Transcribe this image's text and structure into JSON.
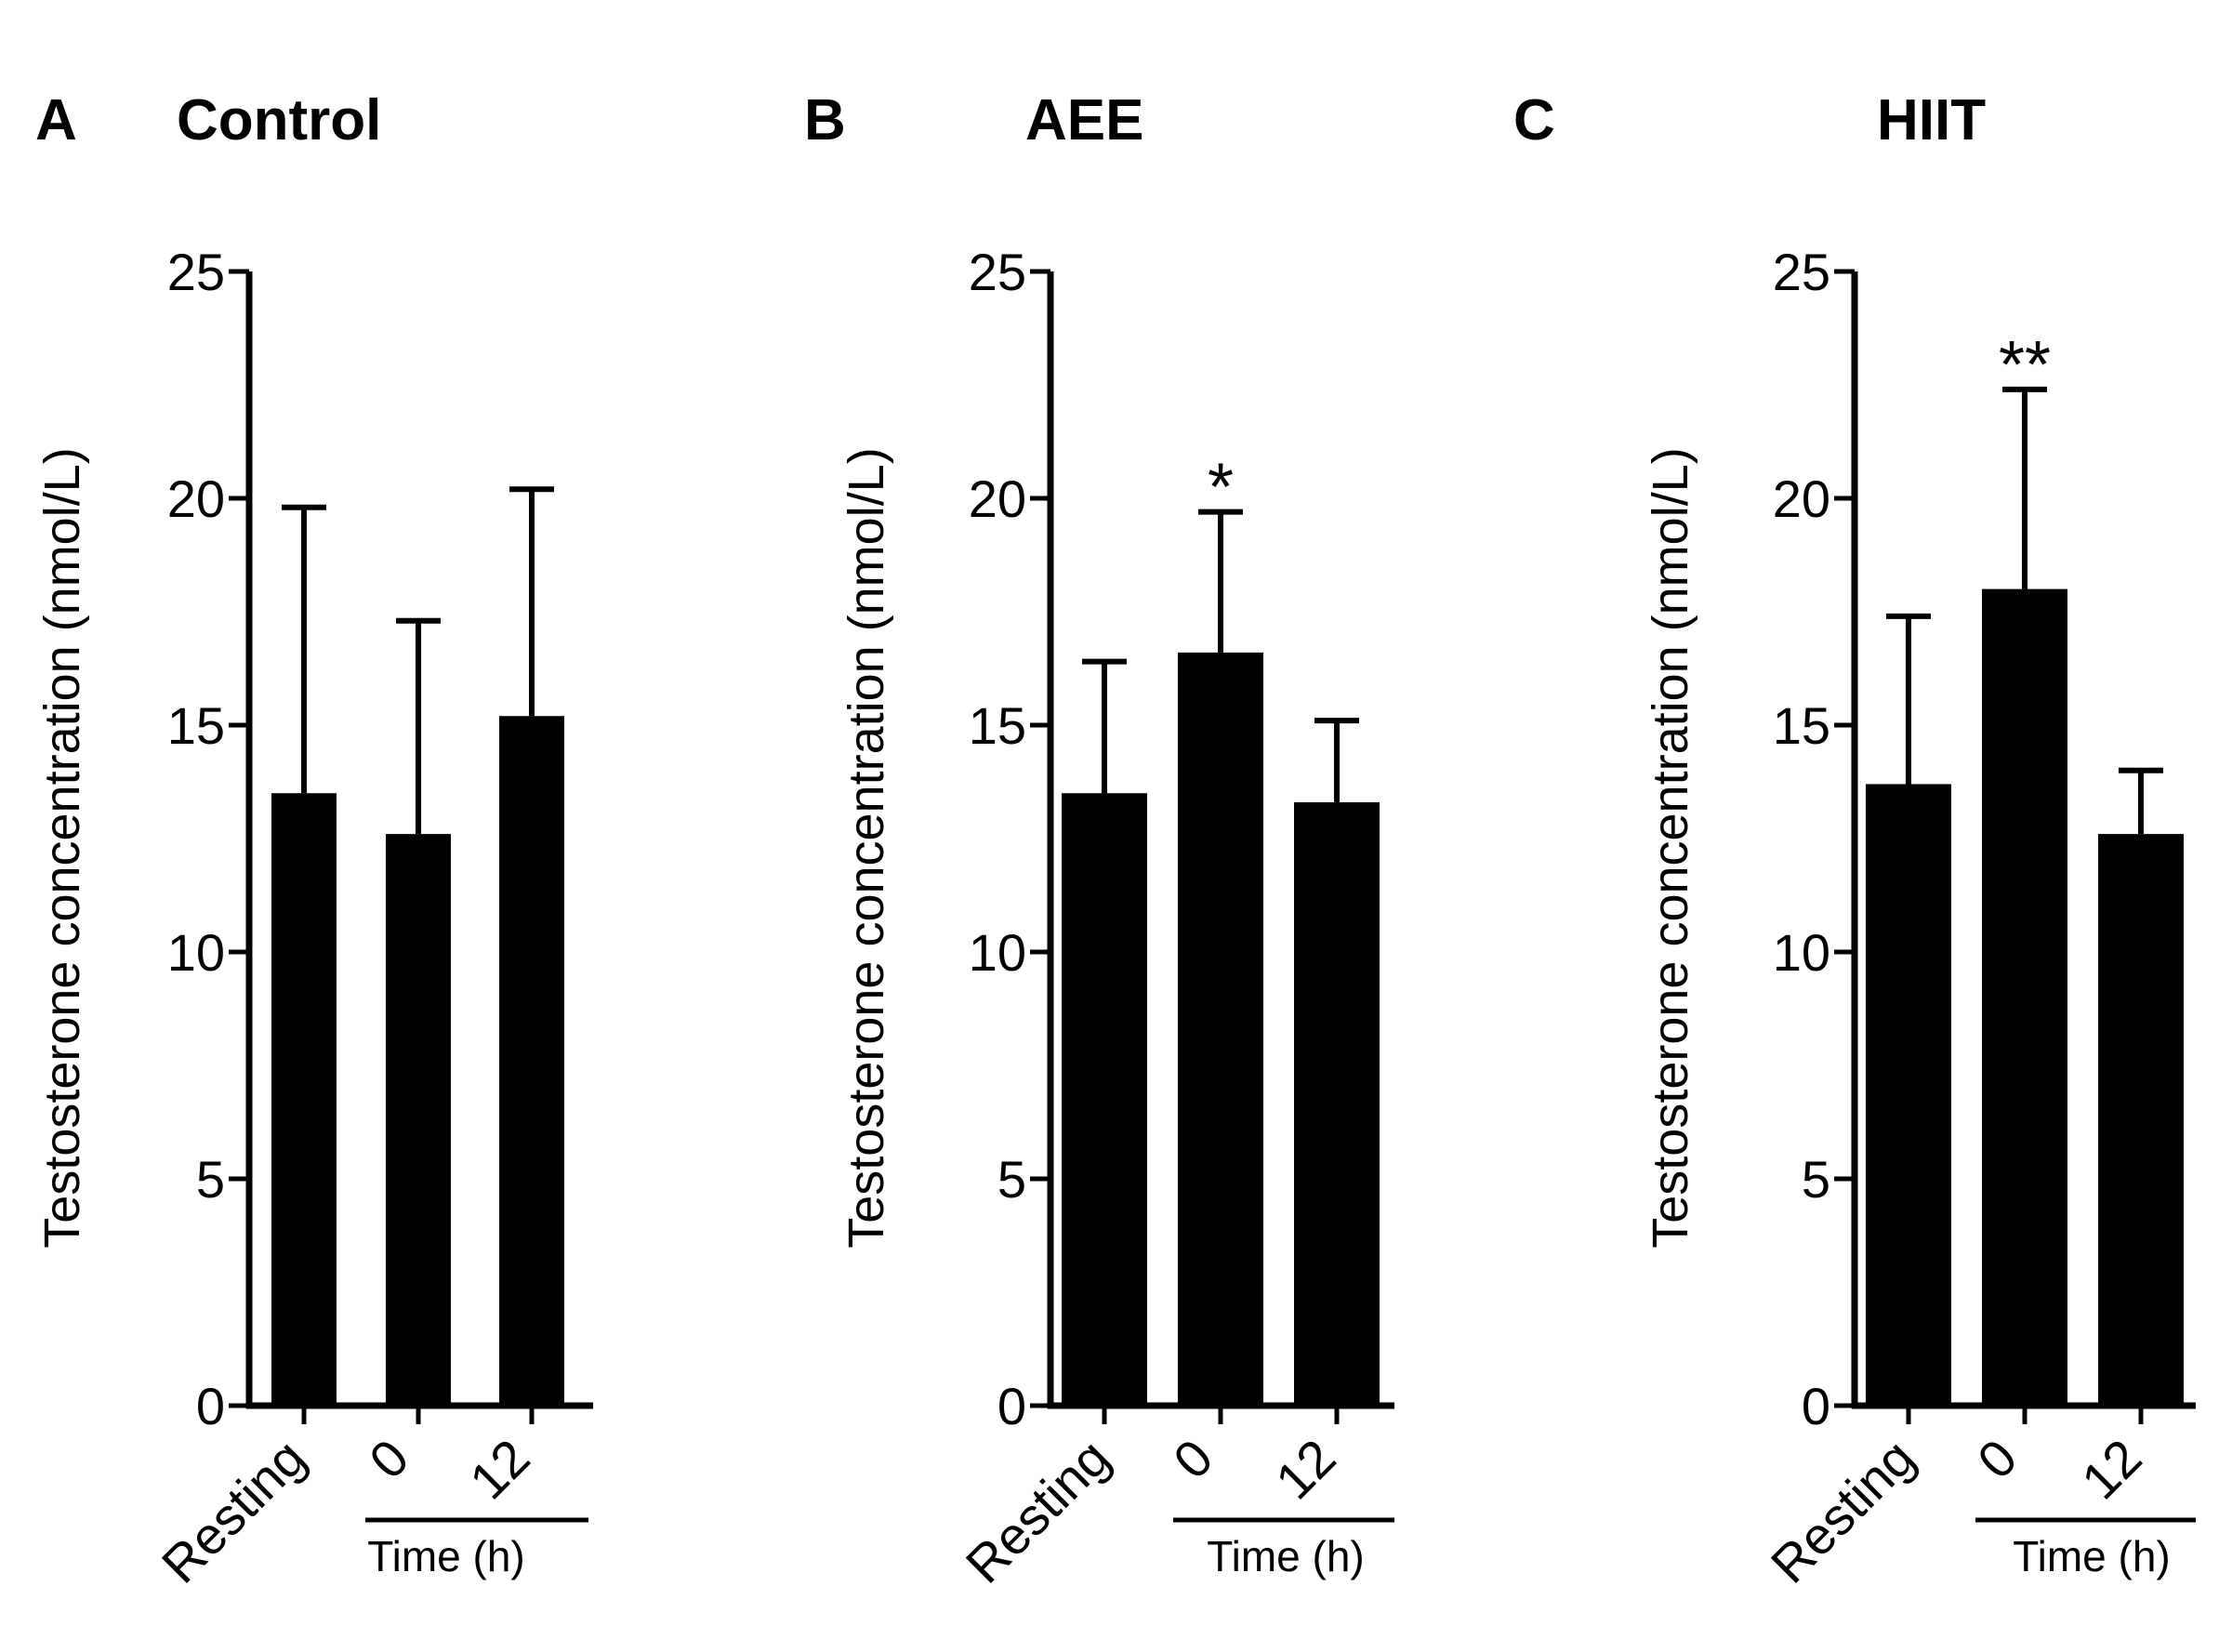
{
  "chart_data": [
    {
      "type": "bar",
      "panel": "A",
      "title": "Control",
      "ylabel": "Testosterone concentration  (nmol/L)",
      "xlabel": "Time  (h)",
      "categories": [
        "Resting",
        "0",
        "12"
      ],
      "values": [
        13.5,
        12.6,
        15.2
      ],
      "errors": [
        6.3,
        4.7,
        5.0
      ],
      "significance": [
        "",
        "",
        ""
      ],
      "ylim": [
        0,
        25
      ],
      "yticks": [
        "0",
        "5",
        "10",
        "15",
        "20",
        "25"
      ]
    },
    {
      "type": "bar",
      "panel": "B",
      "title": "AEE",
      "ylabel": "Testosterone concentration (nmol/L)",
      "xlabel": "Time (h)",
      "categories": [
        "Resting",
        "0",
        "12"
      ],
      "values": [
        13.5,
        16.6,
        13.3
      ],
      "errors": [
        2.9,
        3.1,
        1.8
      ],
      "significance": [
        "",
        "*",
        ""
      ],
      "ylim": [
        0,
        25
      ],
      "yticks": [
        "0",
        "5",
        "10",
        "15",
        "20",
        "25"
      ]
    },
    {
      "type": "bar",
      "panel": "C",
      "title": "HIIT",
      "ylabel": "Testosterone concentration (nmol/L)",
      "xlabel": "Time (h)",
      "categories": [
        "Resting",
        "0",
        "12"
      ],
      "values": [
        13.7,
        18.0,
        12.6
      ],
      "errors": [
        3.7,
        4.4,
        1.4
      ],
      "significance": [
        "",
        "**",
        ""
      ],
      "ylim": [
        0,
        25
      ],
      "yticks": [
        "0",
        "5",
        "10",
        "15",
        "20",
        "25"
      ]
    }
  ],
  "colors": {
    "bar": "#000000",
    "axis": "#000000",
    "background": "#ffffff"
  }
}
